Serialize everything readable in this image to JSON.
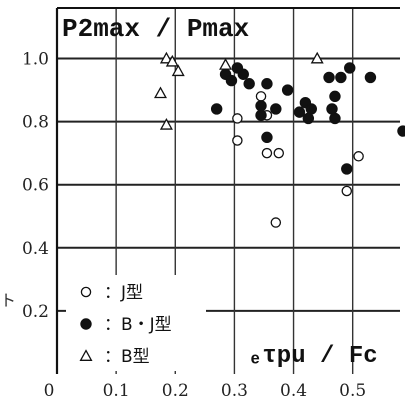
{
  "chart_data": {
    "type": "scatter",
    "xlabel": "ₑτpu / Fc",
    "ylabel": "P2max / Pmax",
    "xlim": [
      0,
      0.58
    ],
    "ylim": [
      0,
      1.16
    ],
    "x_ticks": [
      "0",
      "0.1",
      "0.2",
      "0.3",
      "0.4",
      "0.5"
    ],
    "y_ticks": [
      "0.2",
      "0.4",
      "0.6",
      "0.8",
      "1.0"
    ],
    "grid": true,
    "legend_position": "bottom-left",
    "corner_mark": "ト",
    "series": [
      {
        "name": "J型",
        "marker": "open-circle",
        "points": [
          [
            0.305,
            0.81
          ],
          [
            0.355,
            0.82
          ],
          [
            0.305,
            0.74
          ],
          [
            0.345,
            0.88
          ],
          [
            0.355,
            0.92
          ],
          [
            0.355,
            0.7
          ],
          [
            0.375,
            0.7
          ],
          [
            0.37,
            0.48
          ],
          [
            0.49,
            0.58
          ],
          [
            0.51,
            0.69
          ]
        ]
      },
      {
        "name": "B・J型",
        "marker": "filled-circle",
        "points": [
          [
            0.27,
            0.84
          ],
          [
            0.285,
            0.95
          ],
          [
            0.295,
            0.93
          ],
          [
            0.315,
            0.95
          ],
          [
            0.305,
            0.97
          ],
          [
            0.325,
            0.92
          ],
          [
            0.345,
            0.82
          ],
          [
            0.345,
            0.85
          ],
          [
            0.355,
            0.92
          ],
          [
            0.37,
            0.84
          ],
          [
            0.39,
            0.9
          ],
          [
            0.41,
            0.83
          ],
          [
            0.42,
            0.86
          ],
          [
            0.425,
            0.81
          ],
          [
            0.43,
            0.84
          ],
          [
            0.46,
            0.94
          ],
          [
            0.465,
            0.84
          ],
          [
            0.47,
            0.88
          ],
          [
            0.48,
            0.94
          ],
          [
            0.495,
            0.97
          ],
          [
            0.53,
            0.94
          ],
          [
            0.355,
            0.75
          ],
          [
            0.47,
            0.81
          ],
          [
            0.49,
            0.65
          ],
          [
            0.585,
            0.77
          ]
        ]
      },
      {
        "name": "B型",
        "marker": "open-triangle",
        "points": [
          [
            0.175,
            0.89
          ],
          [
            0.185,
            1.0
          ],
          [
            0.195,
            0.99
          ],
          [
            0.205,
            0.96
          ],
          [
            0.185,
            0.79
          ],
          [
            0.285,
            0.98
          ],
          [
            0.44,
            1.0
          ]
        ]
      }
    ]
  }
}
